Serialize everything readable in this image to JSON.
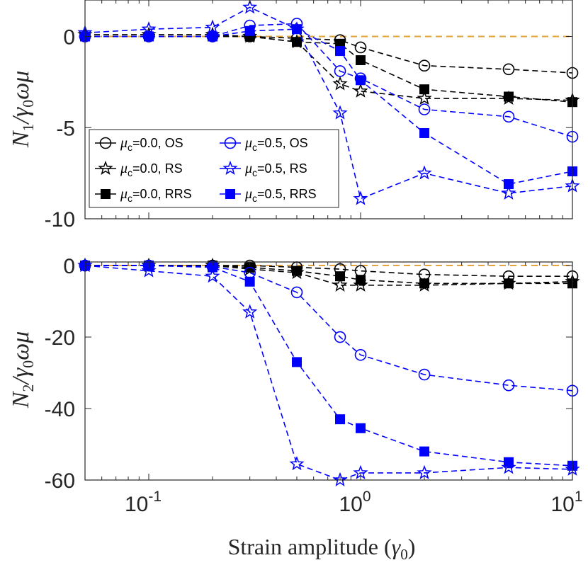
{
  "chart_data": [
    {
      "type": "line",
      "panel": "top",
      "ylabel": "N_1/γ_0ωμ",
      "ylabel_parts": [
        "N",
        "1",
        "/γ",
        "0",
        "ωμ"
      ],
      "xscale": "log",
      "xlim": [
        0.05,
        10
      ],
      "ylim": [
        -10,
        2
      ],
      "yticks": [
        0,
        -5,
        -10
      ],
      "ytick_labels": [
        "0",
        "-5",
        "-10"
      ],
      "reference_line": {
        "y": 0,
        "color": "#E6A23C",
        "style": "dashed"
      },
      "x": [
        0.05,
        0.1,
        0.2,
        0.3,
        0.5,
        0.8,
        1,
        2,
        5,
        10
      ],
      "legend": {
        "location": "left-center",
        "entries": [
          {
            "symbol": "μ",
            "sub": "c",
            "rest": "=0.0, OS"
          },
          {
            "symbol": "μ",
            "sub": "c",
            "rest": "=0.0, RS"
          },
          {
            "symbol": "μ",
            "sub": "c",
            "rest": "=0.0, RRS"
          },
          {
            "symbol": "μ",
            "sub": "c",
            "rest": "=0.5, OS"
          },
          {
            "symbol": "μ",
            "sub": "c",
            "rest": "=0.5, RS"
          },
          {
            "symbol": "μ",
            "sub": "c",
            "rest": "=0.5, RRS"
          }
        ]
      },
      "series": [
        {
          "name": "μc=0.0, OS",
          "color": "#000000",
          "marker": "circle",
          "values": [
            0.0,
            0.0,
            0.0,
            0.0,
            -0.1,
            -0.2,
            -0.6,
            -1.6,
            -1.8,
            -2.0
          ]
        },
        {
          "name": "μc=0.0, RS",
          "color": "#000000",
          "marker": "star",
          "values": [
            0.1,
            0.1,
            0.1,
            0.0,
            -0.3,
            -2.6,
            -3.0,
            -3.4,
            -3.4,
            -3.5
          ]
        },
        {
          "name": "μc=0.0, RRS",
          "color": "#000000",
          "marker": "square",
          "values": [
            0.0,
            0.0,
            0.0,
            0.0,
            -0.3,
            -0.4,
            -1.3,
            -2.9,
            -3.3,
            -3.6
          ]
        },
        {
          "name": "μc=0.5, OS",
          "color": "#0000FF",
          "marker": "circle",
          "values": [
            0.0,
            0.0,
            0.0,
            0.6,
            0.7,
            -1.9,
            -2.3,
            -4.0,
            -4.4,
            -5.5
          ]
        },
        {
          "name": "μc=0.5, RS",
          "color": "#0000FF",
          "marker": "star",
          "values": [
            0.2,
            0.4,
            0.5,
            1.6,
            0.4,
            -4.2,
            -8.9,
            -7.5,
            -8.6,
            -8.2
          ]
        },
        {
          "name": "μc=0.5, RRS",
          "color": "#0000FF",
          "marker": "square",
          "values": [
            0.0,
            0.0,
            0.0,
            0.3,
            0.4,
            -0.8,
            -2.4,
            -5.3,
            -8.1,
            -7.4
          ]
        }
      ]
    },
    {
      "type": "line",
      "panel": "bottom",
      "ylabel": "N_2/γ_0ωμ",
      "ylabel_parts": [
        "N",
        "2",
        "/γ",
        "0",
        "ωμ"
      ],
      "xlabel": "Strain amplitude (γ_0)",
      "xlabel_parts": [
        "Strain amplitude (",
        "γ",
        "0",
        ")"
      ],
      "xscale": "log",
      "xlim": [
        0.05,
        10
      ],
      "ylim": [
        -60,
        1
      ],
      "yticks": [
        0,
        -20,
        -40,
        -60
      ],
      "ytick_labels": [
        "0",
        "-20",
        "-40",
        "-60"
      ],
      "xticks": [
        0.1,
        1,
        10
      ],
      "xtick_labels": [
        {
          "base": "10",
          "exp": "-1"
        },
        {
          "base": "10",
          "exp": "0"
        },
        {
          "base": "10",
          "exp": "1"
        }
      ],
      "reference_line": {
        "y": 0,
        "color": "#E6A23C",
        "style": "dashed"
      },
      "x": [
        0.05,
        0.1,
        0.2,
        0.3,
        0.5,
        0.8,
        1,
        2,
        5,
        10
      ],
      "series": [
        {
          "name": "μc=0.0, OS",
          "color": "#000000",
          "marker": "circle",
          "values": [
            0.0,
            0.0,
            0.0,
            0.0,
            -0.5,
            -1.0,
            -1.5,
            -2.5,
            -3.0,
            -3.0
          ]
        },
        {
          "name": "μc=0.0, RS",
          "color": "#000000",
          "marker": "star",
          "values": [
            0.0,
            0.0,
            0.0,
            -1.0,
            -2.0,
            -5.5,
            -5.5,
            -5.5,
            -5.0,
            -4.5
          ]
        },
        {
          "name": "μc=0.0, RRS",
          "color": "#000000",
          "marker": "square",
          "values": [
            0.0,
            0.0,
            0.0,
            -0.5,
            -1.5,
            -3.0,
            -4.0,
            -5.0,
            -5.0,
            -5.0
          ]
        },
        {
          "name": "μc=0.5, OS",
          "color": "#0000FF",
          "marker": "circle",
          "values": [
            0.0,
            0.0,
            -0.3,
            -2.0,
            -7.5,
            -20.0,
            -25.0,
            -30.5,
            -33.5,
            -35.0
          ]
        },
        {
          "name": "μc=0.5, RS",
          "color": "#0000FF",
          "marker": "star",
          "values": [
            0.0,
            -1.5,
            -3.0,
            -13.0,
            -55.5,
            -60.0,
            -58.0,
            -58.0,
            -56.5,
            -57.0
          ]
        },
        {
          "name": "μc=0.5, RRS",
          "color": "#0000FF",
          "marker": "square",
          "values": [
            0.0,
            0.0,
            -0.5,
            -4.5,
            -27.0,
            -43.0,
            -45.5,
            -52.0,
            -55.0,
            -56.0
          ]
        }
      ]
    }
  ]
}
